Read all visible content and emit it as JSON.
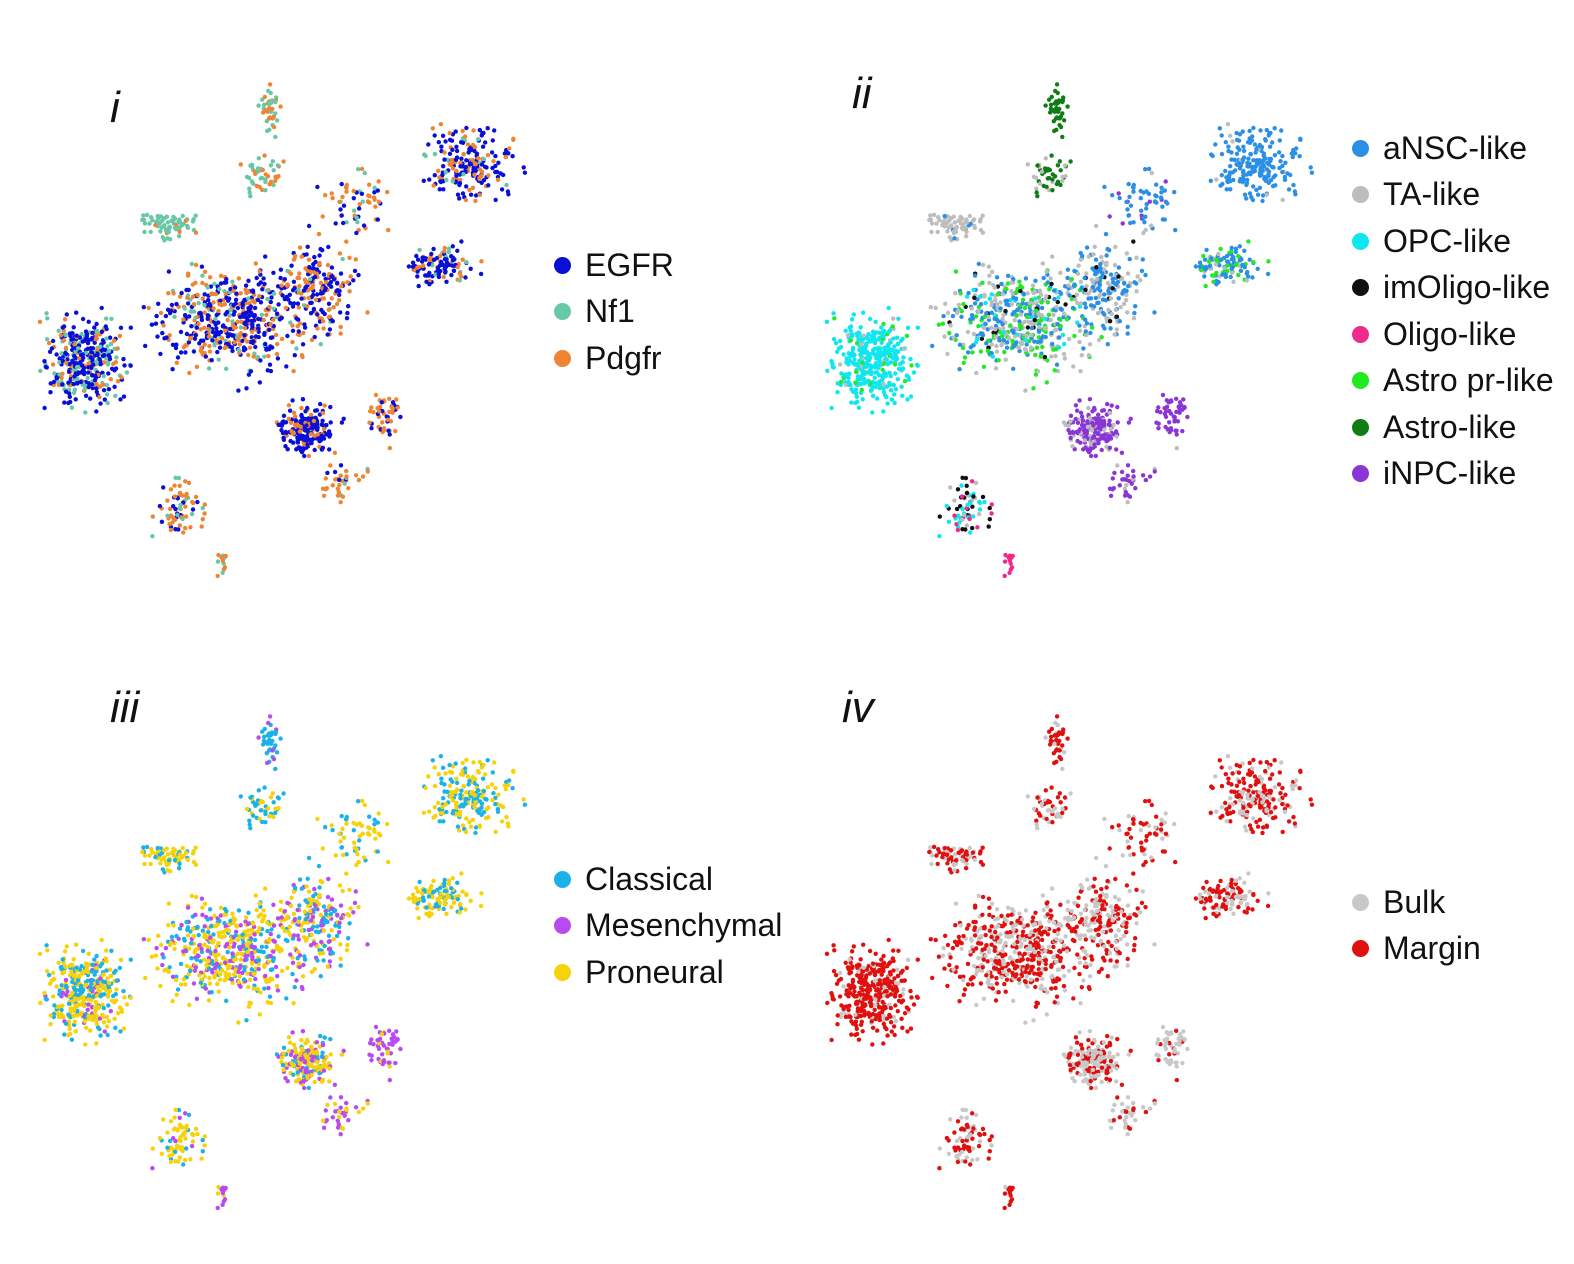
{
  "chart_data": [
    {
      "type": "scatter",
      "panel_label": "i",
      "title": "",
      "xlabel": "",
      "ylabel": "",
      "grid": false,
      "legend_position": "right",
      "series": [
        {
          "name": "EGFR",
          "color": "#0a0fd6"
        },
        {
          "name": "Nf1",
          "color": "#66c8a6"
        },
        {
          "name": "Pdgfr",
          "color": "#ef8432"
        }
      ]
    },
    {
      "type": "scatter",
      "panel_label": "ii",
      "title": "",
      "xlabel": "",
      "ylabel": "",
      "grid": false,
      "legend_position": "right",
      "series": [
        {
          "name": "aNSC-like",
          "color": "#2b8fe6"
        },
        {
          "name": "TA-like",
          "color": "#bdbdbd"
        },
        {
          "name": "OPC-like",
          "color": "#10e6ef"
        },
        {
          "name": "imOligo-like",
          "color": "#111111"
        },
        {
          "name": "Oligo-like",
          "color": "#ee2a8a"
        },
        {
          "name": "Astro pr-like",
          "color": "#22ea22"
        },
        {
          "name": "Astro-like",
          "color": "#0f7d14"
        },
        {
          "name": "iNPC-like",
          "color": "#8a35d6"
        }
      ]
    },
    {
      "type": "scatter",
      "panel_label": "iii",
      "title": "",
      "xlabel": "",
      "ylabel": "",
      "grid": false,
      "legend_position": "right",
      "series": [
        {
          "name": "Classical",
          "color": "#1ab2e8"
        },
        {
          "name": "Mesenchymal",
          "color": "#b84af0"
        },
        {
          "name": "Proneural",
          "color": "#f7d20a"
        }
      ]
    },
    {
      "type": "scatter",
      "panel_label": "iv",
      "title": "",
      "xlabel": "",
      "ylabel": "",
      "grid": false,
      "legend_position": "right",
      "series": [
        {
          "name": "Bulk",
          "color": "#c8c8c8"
        },
        {
          "name": "Margin",
          "color": "#e0100f"
        }
      ]
    }
  ]
}
